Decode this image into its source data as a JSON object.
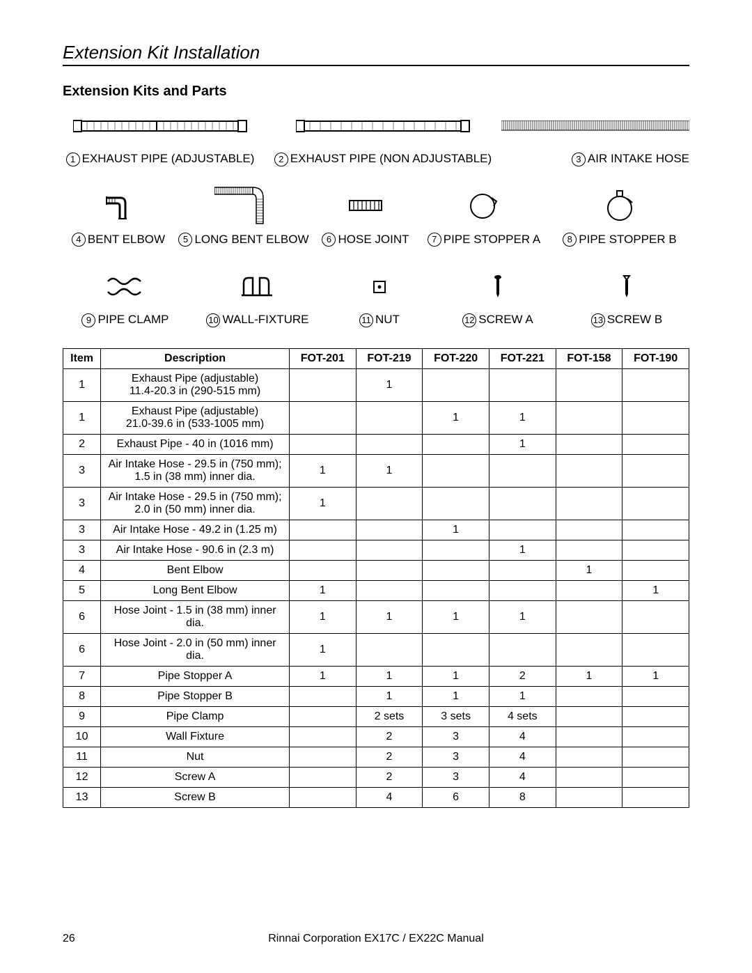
{
  "page_title": "Extension Kit Installation",
  "sub_heading": "Extension Kits and Parts",
  "parts": [
    {
      "num": "1",
      "label": "EXHAUST PIPE (ADJUSTABLE)"
    },
    {
      "num": "2",
      "label": "EXHAUST PIPE (NON ADJUSTABLE)"
    },
    {
      "num": "3",
      "label": "AIR INTAKE HOSE"
    },
    {
      "num": "4",
      "label": "BENT ELBOW"
    },
    {
      "num": "5",
      "label": "LONG BENT ELBOW"
    },
    {
      "num": "6",
      "label": "HOSE JOINT"
    },
    {
      "num": "7",
      "label": "PIPE STOPPER A"
    },
    {
      "num": "8",
      "label": "PIPE STOPPER B"
    },
    {
      "num": "9",
      "label": "PIPE CLAMP"
    },
    {
      "num": "10",
      "label": "WALL-FIXTURE"
    },
    {
      "num": "11",
      "label": "NUT"
    },
    {
      "num": "12",
      "label": "SCREW A"
    },
    {
      "num": "13",
      "label": "SCREW B"
    }
  ],
  "table": {
    "columns": [
      "Item",
      "Description",
      "FOT-201",
      "FOT-219",
      "FOT-220",
      "FOT-221",
      "FOT-158",
      "FOT-190"
    ],
    "col_widths_pct": [
      6,
      30,
      10.6,
      10.6,
      10.6,
      10.6,
      10.6,
      10.6
    ],
    "rows": [
      [
        "1",
        "Exhaust Pipe (adjustable)\n11.4-20.3 in (290-515 mm)",
        "",
        "1",
        "",
        "",
        "",
        ""
      ],
      [
        "1",
        "Exhaust Pipe (adjustable)\n21.0-39.6 in (533-1005 mm)",
        "",
        "",
        "1",
        "1",
        "",
        ""
      ],
      [
        "2",
        "Exhaust Pipe - 40 in (1016 mm)",
        "",
        "",
        "",
        "1",
        "",
        ""
      ],
      [
        "3",
        "Air Intake Hose - 29.5 in (750 mm);\n1.5 in (38 mm) inner dia.",
        "1",
        "1",
        "",
        "",
        "",
        ""
      ],
      [
        "3",
        "Air Intake Hose - 29.5 in (750 mm);\n2.0 in (50 mm) inner dia.",
        "1",
        "",
        "",
        "",
        "",
        ""
      ],
      [
        "3",
        "Air Intake Hose - 49.2 in (1.25 m)",
        "",
        "",
        "1",
        "",
        "",
        ""
      ],
      [
        "3",
        "Air Intake Hose - 90.6 in (2.3 m)",
        "",
        "",
        "",
        "1",
        "",
        ""
      ],
      [
        "4",
        "Bent Elbow",
        "",
        "",
        "",
        "",
        "1",
        ""
      ],
      [
        "5",
        "Long Bent Elbow",
        "1",
        "",
        "",
        "",
        "",
        "1"
      ],
      [
        "6",
        "Hose Joint - 1.5 in (38 mm) inner dia.",
        "1",
        "1",
        "1",
        "1",
        "",
        ""
      ],
      [
        "6",
        "Hose Joint - 2.0 in (50 mm) inner dia.",
        "1",
        "",
        "",
        "",
        "",
        ""
      ],
      [
        "7",
        "Pipe Stopper A",
        "1",
        "1",
        "1",
        "2",
        "1",
        "1"
      ],
      [
        "8",
        "Pipe Stopper B",
        "",
        "1",
        "1",
        "1",
        "",
        ""
      ],
      [
        "9",
        "Pipe Clamp",
        "",
        "2 sets",
        "3 sets",
        "4 sets",
        "",
        ""
      ],
      [
        "10",
        "Wall Fixture",
        "",
        "2",
        "3",
        "4",
        "",
        ""
      ],
      [
        "11",
        "Nut",
        "",
        "2",
        "3",
        "4",
        "",
        ""
      ],
      [
        "12",
        "Screw A",
        "",
        "2",
        "3",
        "4",
        "",
        ""
      ],
      [
        "13",
        "Screw B",
        "",
        "4",
        "6",
        "8",
        "",
        ""
      ]
    ]
  },
  "footer": {
    "page_number": "26",
    "center_text": "Rinnai Corporation EX17C / EX22C Manual"
  },
  "style": {
    "font_family": "Arial",
    "text_color": "#000000",
    "background_color": "#ffffff",
    "border_color": "#000000"
  }
}
